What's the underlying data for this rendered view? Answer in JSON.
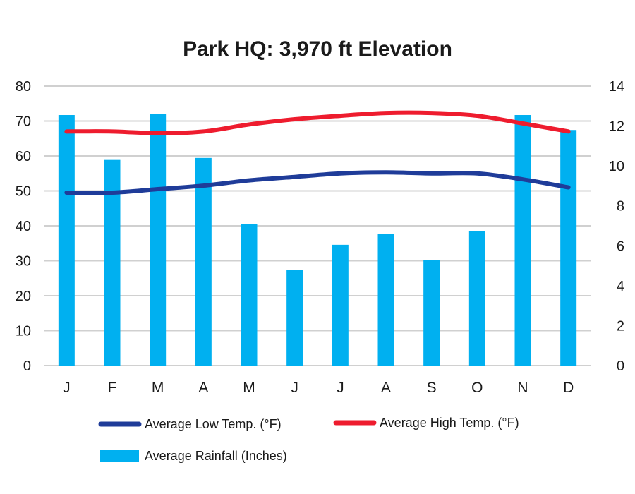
{
  "chart_data": {
    "type": "bar",
    "title": "Park HQ: 3,970 ft Elevation",
    "categories": [
      "J",
      "F",
      "M",
      "A",
      "M",
      "J",
      "J",
      "A",
      "S",
      "O",
      "N",
      "D"
    ],
    "y_left": {
      "min": 0,
      "max": 80,
      "step": 10,
      "ticks": [
        "0",
        "10",
        "20",
        "30",
        "40",
        "50",
        "60",
        "70",
        "80"
      ]
    },
    "y_right": {
      "min": 0,
      "max": 14,
      "step": 2,
      "ticks": [
        "0",
        "2",
        "4",
        "6",
        "8",
        "10",
        "12",
        "14"
      ]
    },
    "grid": true,
    "legend_position": "bottom",
    "series": [
      {
        "name": "Average Rainfall (Inches)",
        "kind": "bar",
        "axis": "right",
        "color": "#00B0F0",
        "values": [
          12.55,
          10.3,
          12.6,
          10.4,
          7.1,
          4.8,
          6.05,
          6.6,
          5.3,
          6.75,
          12.55,
          11.8
        ]
      },
      {
        "name": "Average Low Temp. (°F)",
        "kind": "line",
        "axis": "left",
        "color": "#1F3C99",
        "values": [
          49.5,
          49.5,
          50.5,
          51.5,
          53,
          54,
          55,
          55.3,
          55,
          55,
          53.3,
          51
        ]
      },
      {
        "name": "Average High Temp. (°F)",
        "kind": "line",
        "axis": "left",
        "color": "#EE1C2E",
        "values": [
          67,
          67,
          66.5,
          67,
          69,
          70.5,
          71.5,
          72.3,
          72.3,
          71.5,
          69.3,
          67
        ]
      }
    ]
  }
}
